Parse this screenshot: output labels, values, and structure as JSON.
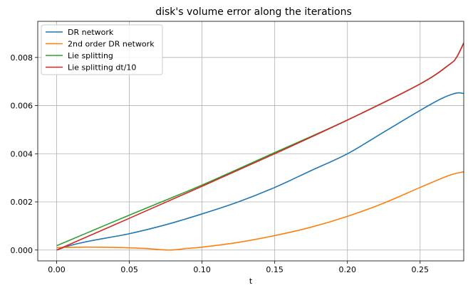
{
  "chart_data": {
    "type": "line",
    "title": "disk's volume error along the iterations",
    "xlabel": "t",
    "ylabel": "",
    "xlim": [
      -0.013,
      0.28
    ],
    "ylim": [
      -0.00045,
      0.0095
    ],
    "xticks": [
      {
        "value": 0.0,
        "label": "0.00"
      },
      {
        "value": 0.05,
        "label": "0.05"
      },
      {
        "value": 0.1,
        "label": "0.10"
      },
      {
        "value": 0.15,
        "label": "0.15"
      },
      {
        "value": 0.2,
        "label": "0.20"
      },
      {
        "value": 0.25,
        "label": "0.25"
      }
    ],
    "yticks": [
      {
        "value": 0.0,
        "label": "0.000"
      },
      {
        "value": 0.002,
        "label": "0.002"
      },
      {
        "value": 0.004,
        "label": "0.004"
      },
      {
        "value": 0.006,
        "label": "0.006"
      },
      {
        "value": 0.008,
        "label": "0.008"
      }
    ],
    "grid": true,
    "legend_position": "top-left",
    "series": [
      {
        "name": "DR network",
        "color": "#1f77b4",
        "x": [
          0.0,
          0.01,
          0.025,
          0.05,
          0.075,
          0.1,
          0.125,
          0.15,
          0.175,
          0.2,
          0.225,
          0.25,
          0.265,
          0.275,
          0.28
        ],
        "y": [
          0.0,
          0.0002,
          0.0004,
          0.00068,
          0.00105,
          0.0015,
          0.002,
          0.0026,
          0.0033,
          0.004,
          0.0049,
          0.0058,
          0.0063,
          0.00652,
          0.0065
        ]
      },
      {
        "name": "2nd order DR network",
        "color": "#ff7f0e",
        "x": [
          0.0,
          0.02,
          0.04,
          0.06,
          0.077,
          0.09,
          0.1,
          0.125,
          0.15,
          0.175,
          0.2,
          0.225,
          0.25,
          0.27,
          0.28
        ],
        "y": [
          0.0001,
          0.00012,
          0.00011,
          7e-05,
          0.0,
          7e-05,
          0.00012,
          0.00032,
          0.0006,
          0.00095,
          0.0014,
          0.00195,
          0.0026,
          0.0031,
          0.00325
        ]
      },
      {
        "name": "Lie splitting",
        "color": "#2ca02c",
        "x": [
          0.0,
          0.05,
          0.1,
          0.15,
          0.2,
          0.25,
          0.27,
          0.275,
          0.28
        ],
        "y": [
          0.00018,
          0.00145,
          0.0027,
          0.00405,
          0.0054,
          0.0069,
          0.0077,
          0.008,
          0.0086
        ]
      },
      {
        "name": "Lie splitting dt/10",
        "color": "#d62728",
        "x": [
          0.0,
          0.05,
          0.1,
          0.15,
          0.2,
          0.25,
          0.27,
          0.275,
          0.28
        ],
        "y": [
          0.0,
          0.00132,
          0.00265,
          0.004,
          0.0054,
          0.0069,
          0.0077,
          0.008,
          0.0086
        ]
      }
    ]
  }
}
